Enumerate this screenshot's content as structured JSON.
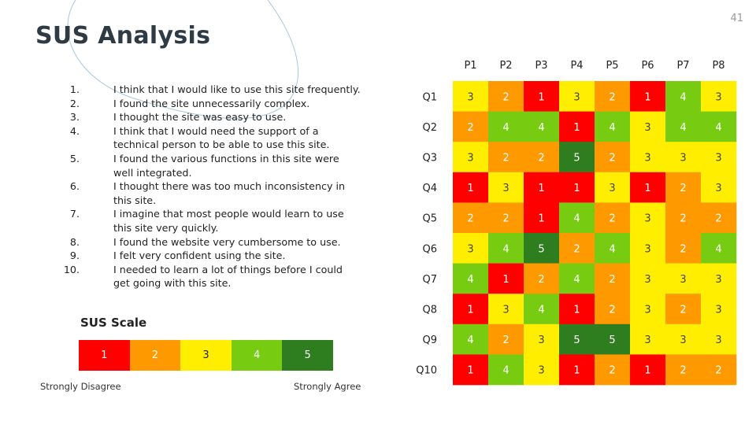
{
  "slide": {
    "page_number": "41",
    "title": "SUS Analysis"
  },
  "questions": [
    {
      "num": "1.",
      "text": "I think that I would like to use this site frequently."
    },
    {
      "num": "2.",
      "text": "I found the site unnecessarily complex."
    },
    {
      "num": "3.",
      "text": "I thought the site was easy to use."
    },
    {
      "num": "4.",
      "text": "I think that I would need the support of a technical person to be able to use this site."
    },
    {
      "num": "5.",
      "text": "I found the various functions in this site were well integrated."
    },
    {
      "num": "6.",
      "text": "I thought there was too much inconsistency in this site."
    },
    {
      "num": "7.",
      "text": "I imagine that most people would learn to use this site very quickly."
    },
    {
      "num": "8.",
      "text": "I found the website very cumbersome to use."
    },
    {
      "num": "9.",
      "text": "I felt very confident using the site."
    },
    {
      "num": "10.",
      "text": "I needed to learn a lot of things before I could get going with this site."
    }
  ],
  "sus_scale": {
    "title": "SUS Scale",
    "levels": [
      "1",
      "2",
      "3",
      "4",
      "5"
    ],
    "low_label": "Strongly Disagree",
    "high_label": "Strongly Agree"
  },
  "colors": {
    "1": "#ff0000",
    "2": "#ff9900",
    "3": "#ffee00",
    "4": "#77cc11",
    "5": "#2e7d1e",
    "text_light": "#ffffff",
    "text_dark": "#222222",
    "title": "#2e3a44",
    "decor_line": "#a9c6dc"
  },
  "chart_data": {
    "type": "heatmap",
    "x_labels": [
      "P1",
      "P2",
      "P3",
      "P4",
      "P5",
      "P6",
      "P7",
      "P8"
    ],
    "y_labels": [
      "Q1",
      "Q2",
      "Q3",
      "Q4",
      "Q5",
      "Q6",
      "Q7",
      "Q8",
      "Q9",
      "Q10"
    ],
    "values": [
      [
        3,
        2,
        1,
        3,
        2,
        1,
        4,
        3
      ],
      [
        2,
        4,
        4,
        1,
        4,
        3,
        4,
        4
      ],
      [
        3,
        2,
        2,
        5,
        2,
        3,
        3,
        3
      ],
      [
        1,
        3,
        1,
        1,
        3,
        1,
        2,
        3
      ],
      [
        2,
        2,
        1,
        4,
        2,
        3,
        2,
        2
      ],
      [
        3,
        4,
        5,
        2,
        4,
        3,
        2,
        4
      ],
      [
        4,
        1,
        2,
        4,
        2,
        3,
        3,
        3
      ],
      [
        1,
        3,
        4,
        1,
        2,
        3,
        2,
        3
      ],
      [
        4,
        2,
        3,
        5,
        5,
        3,
        3,
        3
      ],
      [
        1,
        4,
        3,
        1,
        2,
        1,
        2,
        2
      ]
    ],
    "value_range": [
      1,
      5
    ]
  }
}
